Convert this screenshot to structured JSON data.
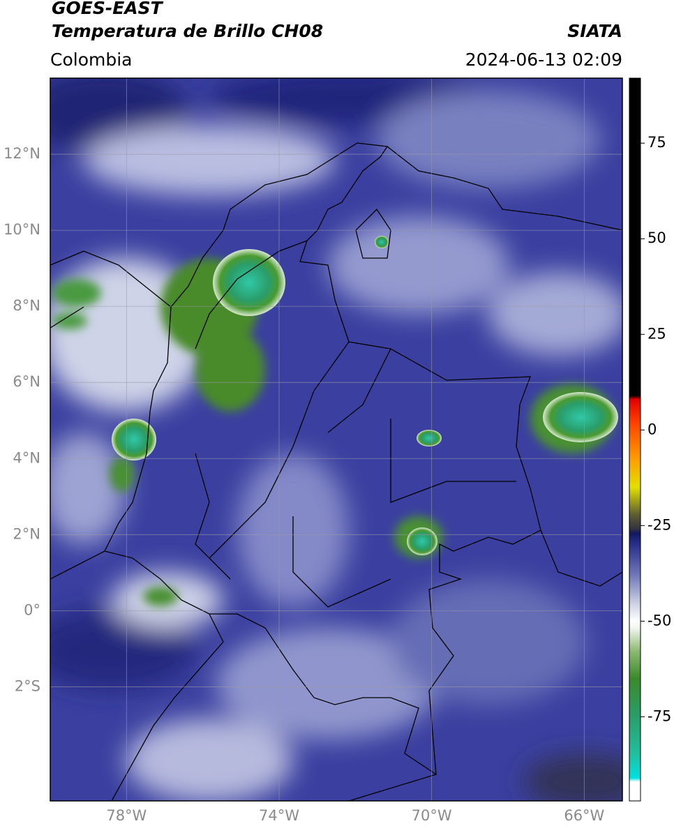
{
  "header": {
    "title": "GOES-EAST",
    "subtitle": "Temperatura de Brillo CH08",
    "source": "SIATA",
    "region": "Colombia",
    "datetime": "2024-06-13 02:09"
  },
  "map": {
    "lonlim": [
      -80,
      -65
    ],
    "latlim": [
      -5,
      14
    ],
    "xticks": [
      {
        "value": -78,
        "label": "78°W"
      },
      {
        "value": -74,
        "label": "74°W"
      },
      {
        "value": -70,
        "label": "70°W"
      },
      {
        "value": -66,
        "label": "66°W"
      }
    ],
    "yticks": [
      {
        "value": 12,
        "label": "12°N"
      },
      {
        "value": 10,
        "label": "10°N"
      },
      {
        "value": 8,
        "label": "8°N"
      },
      {
        "value": 6,
        "label": "6°N"
      },
      {
        "value": 4,
        "label": "4°N"
      },
      {
        "value": 2,
        "label": "2°N"
      },
      {
        "value": 0,
        "label": "0°"
      },
      {
        "value": -2,
        "label": "2°S"
      }
    ],
    "grid": true
  },
  "colorbar": {
    "lim": [
      -97,
      92
    ],
    "ticks": [
      75,
      50,
      25,
      0,
      -25,
      -50,
      -75
    ],
    "colormap": [
      {
        "value": -97,
        "color": "#ffffff"
      },
      {
        "value": -92,
        "color": "#ffffff"
      },
      {
        "value": -91,
        "color": "#00e0e0"
      },
      {
        "value": -85,
        "color": "#20c0a0"
      },
      {
        "value": -75,
        "color": "#2a9d6a"
      },
      {
        "value": -65,
        "color": "#3a8a2a"
      },
      {
        "value": -58,
        "color": "#8ab870"
      },
      {
        "value": -52,
        "color": "#eef4ec"
      },
      {
        "value": -50,
        "color": "#ffffff"
      },
      {
        "value": -45,
        "color": "#c8cce0"
      },
      {
        "value": -38,
        "color": "#7078b8"
      },
      {
        "value": -30,
        "color": "#2a2f8a"
      },
      {
        "value": -27,
        "color": "#101860"
      },
      {
        "value": -26,
        "color": "#303040"
      },
      {
        "value": -22,
        "color": "#606030"
      },
      {
        "value": -15,
        "color": "#e0e000"
      },
      {
        "value": -8,
        "color": "#ffa000"
      },
      {
        "value": 2,
        "color": "#ff4000"
      },
      {
        "value": 8,
        "color": "#e00000"
      },
      {
        "value": 9,
        "color": "#000000"
      },
      {
        "value": 92,
        "color": "#000000"
      }
    ]
  }
}
